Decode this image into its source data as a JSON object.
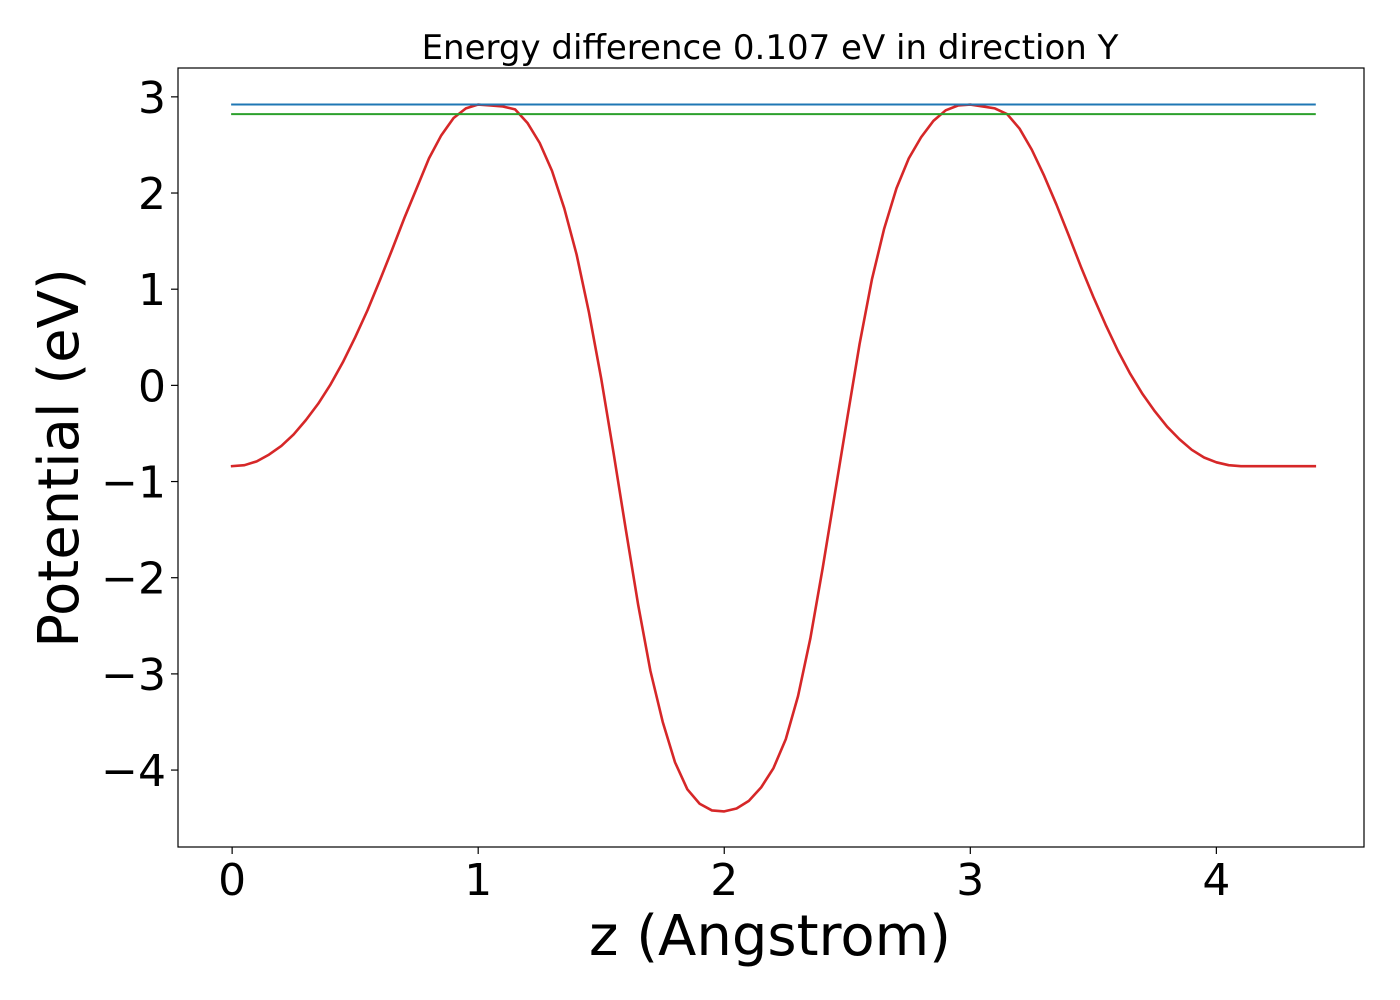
{
  "chart_data": {
    "type": "line",
    "title": "Energy difference 0.107 eV in direction Y",
    "xlabel": "z (Angstrom)",
    "ylabel": "Potential (eV)",
    "xlim": [
      -0.22,
      4.6
    ],
    "ylim": [
      -4.8,
      3.3
    ],
    "xticks": [
      0,
      1,
      2,
      3,
      4
    ],
    "yticks": [
      3,
      2,
      1,
      0,
      -1,
      -2,
      -3,
      -4
    ],
    "xtick_labels": [
      "0",
      "1",
      "2",
      "3",
      "4"
    ],
    "ytick_labels": [
      "3",
      "2",
      "1",
      "0",
      "−1",
      "−2",
      "−3",
      "−4"
    ],
    "grid": false,
    "legend": "none",
    "series": [
      {
        "color": "#d62728",
        "x": [
          0.0,
          0.05,
          0.1,
          0.15,
          0.2,
          0.25,
          0.3,
          0.35,
          0.4,
          0.45,
          0.5,
          0.55,
          0.6,
          0.65,
          0.7,
          0.75,
          0.8,
          0.85,
          0.9,
          0.95,
          1.0,
          1.05,
          1.1,
          1.15,
          1.2,
          1.25,
          1.3,
          1.35,
          1.4,
          1.45,
          1.5,
          1.55,
          1.6,
          1.65,
          1.7,
          1.75,
          1.8,
          1.85,
          1.9,
          1.95,
          2.0,
          2.05,
          2.1,
          2.15,
          2.2,
          2.25,
          2.3,
          2.35,
          2.4,
          2.45,
          2.5,
          2.55,
          2.6,
          2.65,
          2.7,
          2.75,
          2.8,
          2.85,
          2.9,
          2.95,
          3.0,
          3.05,
          3.1,
          3.15,
          3.2,
          3.25,
          3.3,
          3.35,
          3.4,
          3.45,
          3.5,
          3.55,
          3.6,
          3.65,
          3.7,
          3.75,
          3.8,
          3.85,
          3.9,
          3.95,
          4.0,
          4.05,
          4.1,
          4.15,
          4.2,
          4.25,
          4.3,
          4.35,
          4.4
        ],
        "y": [
          -0.84,
          -0.83,
          -0.79,
          -0.72,
          -0.63,
          -0.51,
          -0.36,
          -0.19,
          0.01,
          0.24,
          0.5,
          0.78,
          1.09,
          1.41,
          1.74,
          2.05,
          2.36,
          2.6,
          2.78,
          2.88,
          2.92,
          2.91,
          2.9,
          2.87,
          2.73,
          2.52,
          2.23,
          1.84,
          1.36,
          0.76,
          0.07,
          -0.7,
          -1.5,
          -2.28,
          -2.97,
          -3.5,
          -3.92,
          -4.2,
          -4.35,
          -4.42,
          -4.43,
          -4.4,
          -4.32,
          -4.18,
          -3.98,
          -3.68,
          -3.23,
          -2.63,
          -1.9,
          -1.12,
          -0.34,
          0.43,
          1.1,
          1.63,
          2.05,
          2.36,
          2.58,
          2.75,
          2.86,
          2.91,
          2.92,
          2.9,
          2.88,
          2.82,
          2.67,
          2.45,
          2.18,
          1.88,
          1.56,
          1.23,
          0.92,
          0.63,
          0.36,
          0.12,
          -0.09,
          -0.27,
          -0.43,
          -0.56,
          -0.67,
          -0.75,
          -0.8,
          -0.83,
          -0.84,
          -0.84,
          -0.84,
          -0.84,
          -0.84,
          -0.84,
          -0.84
        ]
      },
      {
        "color": "#1f77b4",
        "x": [
          0.0,
          4.4
        ],
        "y": [
          2.92,
          2.92
        ]
      },
      {
        "color": "#2ca02c",
        "x": [
          0.0,
          4.4
        ],
        "y": [
          2.82,
          2.82
        ]
      }
    ]
  }
}
